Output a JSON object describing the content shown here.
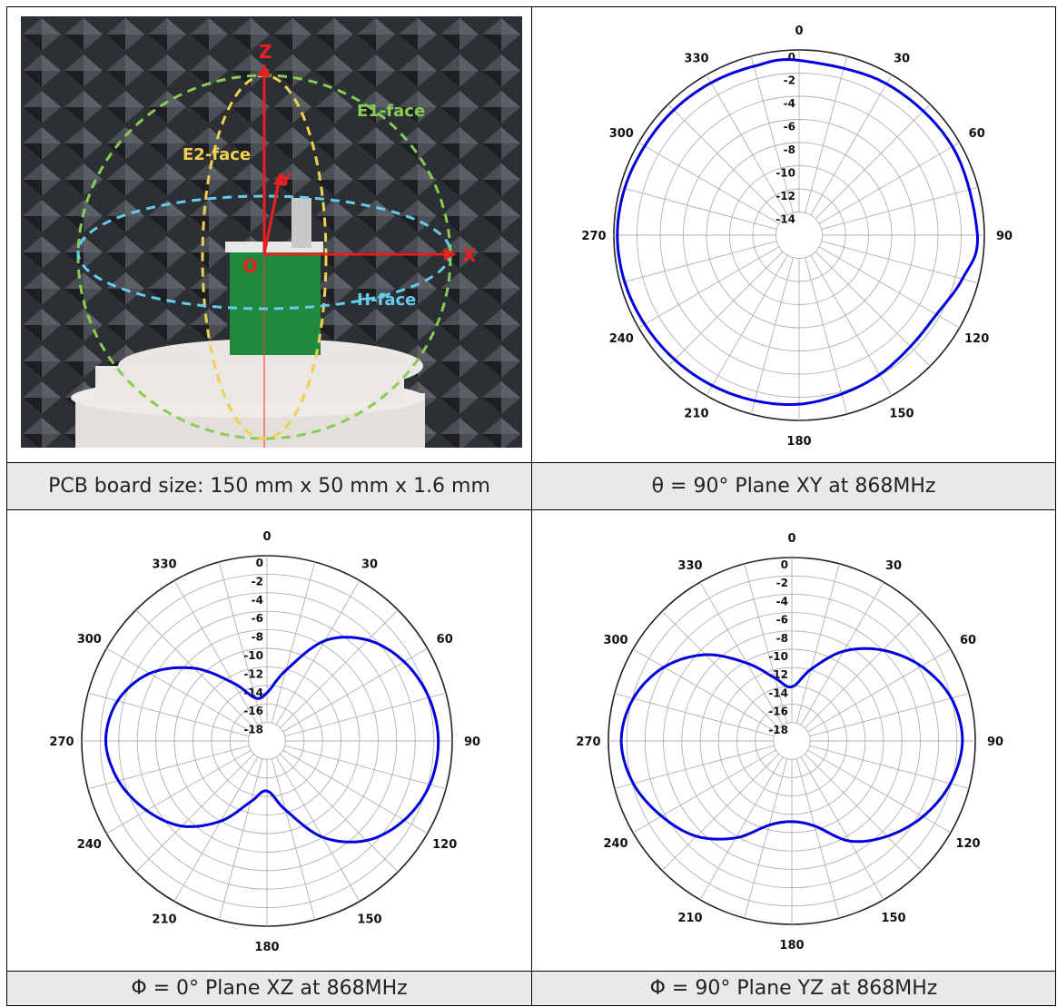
{
  "captions": {
    "photo": "PCB board size: 150 mm x 50 mm x 1.6 mm",
    "xy": "θ = 90° Plane XY at 868MHz",
    "xz": "Φ = 0° Plane XZ at 868MHz",
    "yz": "Φ = 90° Plane YZ at 868MHz"
  },
  "photo_labels": {
    "z": "Z",
    "y": "Y",
    "x": "X",
    "o": "O",
    "e1": "E1-face",
    "e2": "E2-face",
    "h": "H-face"
  },
  "colors": {
    "trace": "#0000dd",
    "grid": "#b0b0b0",
    "e1": "#88cc55",
    "e2": "#f0d050",
    "h": "#66ccee",
    "axis": "#e82020"
  },
  "chart_data": [
    {
      "type": "polar",
      "name": "XY",
      "angle_ticks": [
        0,
        30,
        60,
        90,
        120,
        150,
        180,
        210,
        240,
        270,
        300,
        330
      ],
      "radial_ticks": [
        0,
        -2,
        -4,
        -6,
        -8,
        -10,
        -12,
        -14
      ],
      "rlim": [
        -16,
        0
      ],
      "angles": [
        0,
        30,
        60,
        90,
        105,
        120,
        135,
        150,
        165,
        180,
        195,
        210,
        225,
        240,
        255,
        270,
        285,
        300,
        315,
        330,
        345,
        360
      ],
      "values": [
        -0.9,
        -0.9,
        -0.7,
        -0.6,
        -1.4,
        -2.3,
        -2.4,
        -2.1,
        -1.8,
        -1.4,
        -1.2,
        -1.0,
        -0.8,
        -0.6,
        -0.4,
        -0.3,
        -0.4,
        -0.6,
        -0.7,
        -0.8,
        -0.9,
        -0.9
      ]
    },
    {
      "type": "polar",
      "name": "XZ",
      "angle_ticks": [
        0,
        30,
        60,
        90,
        120,
        150,
        180,
        210,
        240,
        270,
        300,
        330
      ],
      "radial_ticks": [
        0,
        -2,
        -4,
        -6,
        -8,
        -10,
        -12,
        -14,
        -16,
        -18
      ],
      "rlim": [
        -20,
        0
      ],
      "angles": [
        0,
        15,
        30,
        45,
        60,
        75,
        90,
        105,
        120,
        135,
        150,
        165,
        180,
        195,
        210,
        225,
        240,
        255,
        270,
        285,
        300,
        315,
        330,
        345,
        360
      ],
      "values": [
        -14.8,
        -12.1,
        -7.5,
        -4.6,
        -2.9,
        -1.9,
        -1.5,
        -1.8,
        -2.9,
        -4.8,
        -8.0,
        -12.3,
        -14.6,
        -13.2,
        -10.0,
        -7.0,
        -5.0,
        -3.4,
        -2.6,
        -3.3,
        -5.4,
        -8.9,
        -12.8,
        -15.2,
        -14.8
      ]
    },
    {
      "type": "polar",
      "name": "YZ",
      "angle_ticks": [
        0,
        30,
        60,
        90,
        120,
        150,
        180,
        210,
        240,
        270,
        300,
        330
      ],
      "radial_ticks": [
        0,
        -2,
        -4,
        -6,
        -8,
        -10,
        -12,
        -14,
        -16,
        -18
      ],
      "rlim": [
        -20,
        0
      ],
      "angles": [
        0,
        15,
        30,
        45,
        60,
        75,
        90,
        105,
        120,
        135,
        150,
        165,
        180,
        195,
        210,
        225,
        240,
        255,
        270,
        285,
        300,
        315,
        330,
        345,
        360
      ],
      "values": [
        -14.1,
        -11.9,
        -8.7,
        -6.0,
        -3.7,
        -2.0,
        -1.4,
        -2.1,
        -3.5,
        -5.3,
        -7.4,
        -10.4,
        -11.2,
        -10.5,
        -7.8,
        -5.3,
        -3.6,
        -2.1,
        -1.4,
        -2.1,
        -3.9,
        -6.7,
        -10.2,
        -12.9,
        -14.1
      ]
    }
  ]
}
